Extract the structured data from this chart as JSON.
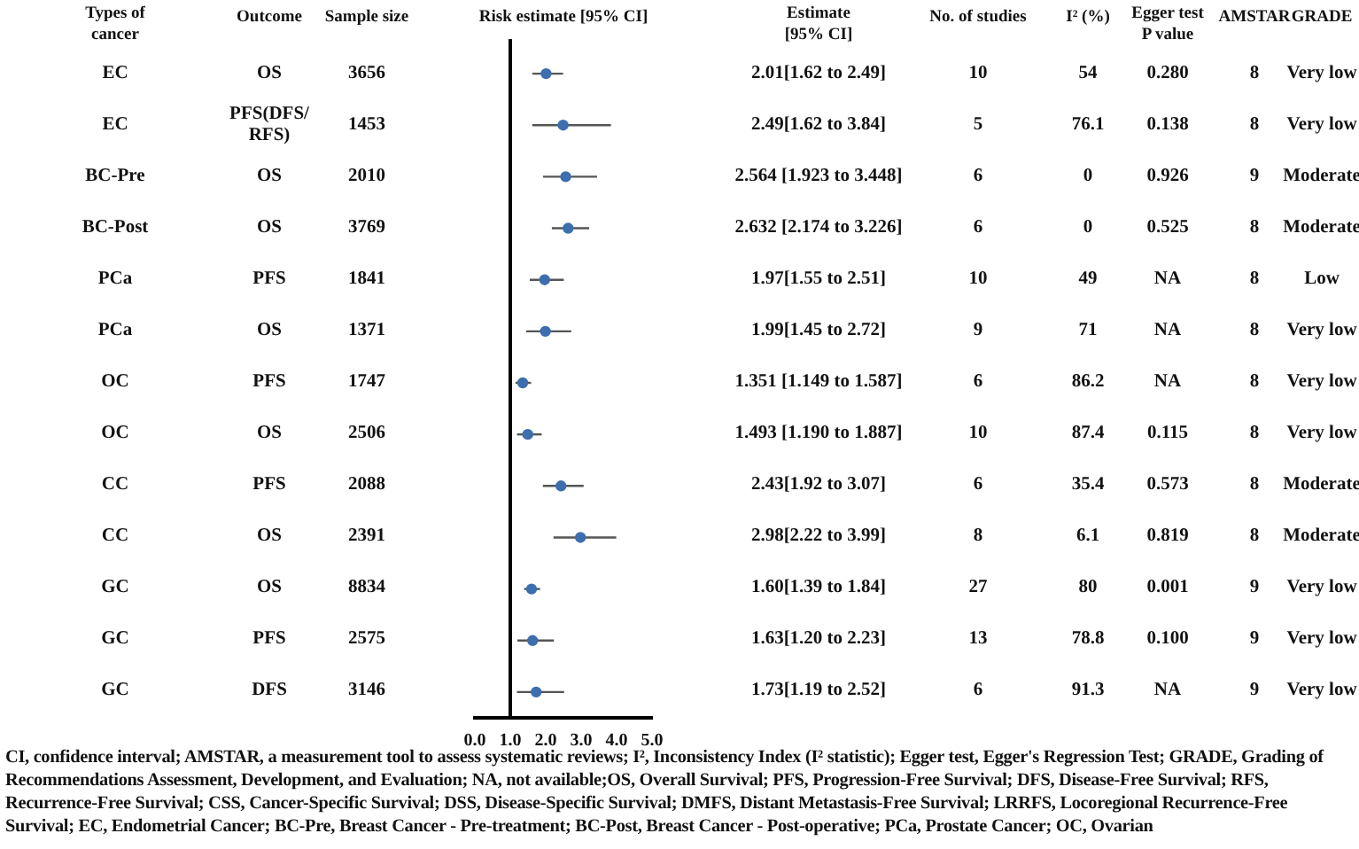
{
  "chart_data": [
    {
      "type": "other",
      "title": "Types of cancer",
      "annotations": [
        "EC",
        "EC",
        "BC-Pre",
        "BC-Post",
        "PCa",
        "PCa",
        "OC",
        "OC",
        "CC",
        "CC",
        "GC",
        "GC",
        "GC"
      ]
    },
    {
      "type": "other",
      "title": "Outcome",
      "annotations": [
        "OS",
        "PFS(DFS/ RFS)",
        "OS",
        "OS",
        "PFS",
        "OS",
        "PFS",
        "OS",
        "PFS",
        "OS",
        "OS",
        "PFS",
        "DFS"
      ]
    },
    {
      "type": "other",
      "title": "Sample size",
      "annotations": [
        "3656",
        "1453",
        "2010",
        "3769",
        "1841",
        "1371",
        "1747",
        "2506",
        "2088",
        "2391",
        "8834",
        "2575",
        "3146"
      ]
    },
    {
      "type": "scatter",
      "orientation": "horizontal",
      "title": "Risk estimate [95% CI]",
      "categories": [
        null,
        null,
        null,
        null,
        null,
        null,
        null,
        null,
        null,
        null,
        null,
        null,
        null
      ],
      "values": [
        2.01,
        2.49,
        2.564,
        2.632,
        1.97,
        1.99,
        1.351,
        1.493,
        2.43,
        2.98,
        1.6,
        1.63,
        1.73
      ],
      "errors": [
        [
          1.62,
          2.49
        ],
        [
          1.62,
          3.84
        ],
        [
          1.923,
          3.448
        ],
        [
          2.174,
          3.226
        ],
        [
          1.55,
          2.51
        ],
        [
          1.45,
          2.72
        ],
        [
          1.149,
          1.587
        ],
        [
          1.19,
          1.887
        ],
        [
          1.92,
          3.07
        ],
        [
          2.22,
          3.99
        ],
        [
          1.39,
          1.84
        ],
        [
          1.2,
          2.23
        ],
        [
          1.19,
          2.52
        ]
      ],
      "color": "#3d6fae",
      "marker": "circle",
      "xlim": [
        0,
        5
      ],
      "xticks": [
        {
          "value": 0,
          "label": "0.0"
        },
        {
          "value": 1,
          "label": "1.0"
        },
        {
          "value": 2,
          "label": "2.0"
        },
        {
          "value": 3,
          "label": "3.0"
        },
        {
          "value": 4,
          "label": "4.0"
        },
        {
          "value": 5,
          "label": "5.0"
        }
      ],
      "tick_labels": "x",
      "ref_lines": [
        {
          "axis": "x",
          "value": 1,
          "color": "#000000"
        }
      ]
    },
    {
      "type": "other",
      "title": "Estimate [95% CI]",
      "annotations": [
        "2.01[1.62 to 2.49]",
        "2.49[1.62 to 3.84]",
        "2.564 [1.923 to 3.448]",
        "2.632 [2.174 to 3.226]",
        "1.97[1.55 to 2.51]",
        "1.99[1.45 to 2.72]",
        "1.351 [1.149 to 1.587]",
        "1.493 [1.190 to 1.887]",
        "2.43[1.92 to 3.07]",
        "2.98[2.22 to 3.99]",
        "1.60[1.39 to 1.84]",
        "1.63[1.20 to 2.23]",
        "1.73[1.19 to 2.52]"
      ]
    },
    {
      "type": "other",
      "title": "No. of studies",
      "annotations": [
        "10",
        "5",
        "6",
        "6",
        "10",
        "9",
        "6",
        "10",
        "6",
        "8",
        "27",
        "13",
        "6"
      ]
    },
    {
      "type": "other",
      "title": "I² (%)",
      "annotations": [
        "54",
        "76.1",
        "0",
        "0",
        "49",
        "71",
        "86.2",
        "87.4",
        "35.4",
        "6.1",
        "80",
        "78.8",
        "91.3"
      ]
    },
    {
      "type": "other",
      "title": "Egger test P value",
      "annotations": [
        "0.280",
        "0.138",
        "0.926",
        "0.525",
        "NA",
        "NA",
        "NA",
        "0.115",
        "0.573",
        "0.819",
        "0.001",
        "0.100",
        "NA"
      ]
    },
    {
      "type": "other",
      "title": "AMSTAR",
      "annotations": [
        "8",
        "8",
        "9",
        "8",
        "8",
        "8",
        "8",
        "8",
        "8",
        "8",
        "9",
        "9",
        "9"
      ]
    },
    {
      "type": "other",
      "title": "GRADE",
      "annotations": [
        "Very low",
        "Very low",
        "Moderate",
        "Moderate",
        "Low",
        "Very low",
        "Very low",
        "Very low",
        "Moderate",
        "Moderate",
        "Very low",
        "Very low",
        "Very low"
      ]
    },
    {
      "type": "other",
      "annotations": [
        "CI, confidence interval; AMSTAR, a measurement tool to assess systematic reviews; I², Inconsistency Index (I² statistic); Egger test, Egger's Regression Test; GRADE, Grading of Recommendations Assessment, Development, and Evaluation; NA, not available;OS, Overall Survival; PFS, Progression-Free Survival; DFS, Disease-Free Survival; RFS, Recurrence-Free Survival; CSS, Cancer-Specific Survival; DSS, Disease-Specific Survival; DMFS, Distant Metastasis-Free Survival; LRRFS, Locoregional Recurrence-Free Survival; EC, Endometrial Cancer;  BC-Pre, Breast Cancer - Pre-treatment;  BC-Post, Breast Cancer - Post-operative; PCa, Prostate Cancer; OC, Ovarian"
      ]
    }
  ]
}
